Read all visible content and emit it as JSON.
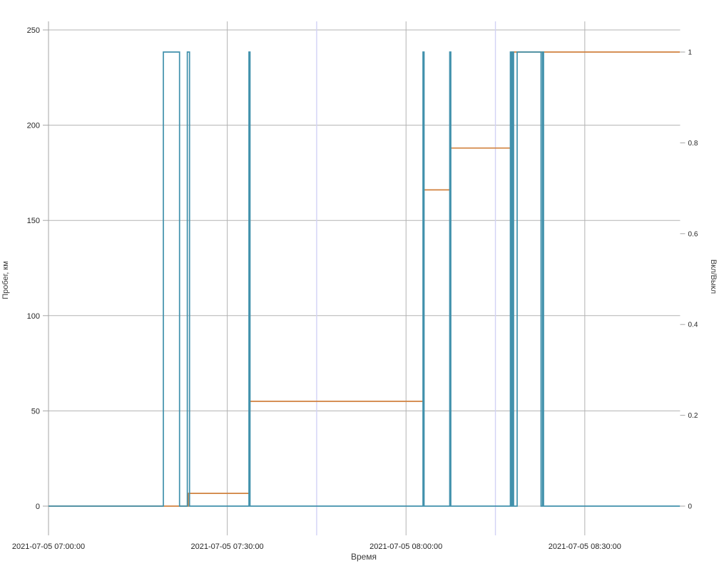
{
  "chart_data": {
    "type": "line",
    "title": "",
    "xlabel": "Время",
    "ylabel_left": "Пробег, км",
    "ylabel_right": "Вкл/Выкл",
    "x_axis": {
      "unit": "minutes from 2021-07-05 07:00:00",
      "range": [
        0,
        106
      ],
      "major_ticks": [
        {
          "t": 0,
          "label": "2021-07-05 07:00:00"
        },
        {
          "t": 30,
          "label": "2021-07-05 07:30:00"
        },
        {
          "t": 60,
          "label": "2021-07-05 08:00:00"
        },
        {
          "t": 90,
          "label": "2021-07-05 08:30:00"
        }
      ],
      "minor_ticks": [
        45,
        75
      ]
    },
    "y_left_axis": {
      "range": [
        0,
        254.5
      ],
      "ticks": [
        0,
        50,
        100,
        150,
        200,
        250
      ],
      "tick_labels": [
        "0",
        "50",
        "100",
        "150",
        "200",
        "250"
      ]
    },
    "y_right_axis": {
      "range": [
        0,
        1.068
      ],
      "ticks": [
        0,
        0.2,
        0.4,
        0.6,
        0.8,
        1
      ],
      "tick_labels": [
        "0",
        "0.2",
        "0.4",
        "0.6",
        "0.8",
        "1"
      ]
    },
    "grid": {
      "horizontal": [
        50,
        100,
        150,
        200,
        250
      ],
      "vertical_major": [
        30,
        60,
        90
      ],
      "baseline": 0
    },
    "legend": "none",
    "series": [
      {
        "name": "Пробег, км",
        "axis": "left",
        "style": "step",
        "color": "#d0813e",
        "points": [
          {
            "t": 0,
            "value": 0
          },
          {
            "t": 23.46,
            "value": 6.7
          },
          {
            "t": 33.7,
            "value": 55
          },
          {
            "t": 62.9,
            "value": 166
          },
          {
            "t": 67.39,
            "value": 188
          },
          {
            "t": 77.75,
            "value": 238.4
          }
        ],
        "end_t": 105.97
      },
      {
        "name": "Вкл/Выкл",
        "axis": "right",
        "style": "pulse",
        "color": "#4191ac",
        "low": 0,
        "high": 1,
        "pulses": [
          {
            "on": 19.27,
            "off": 21.99
          },
          {
            "on": 23.3,
            "off": 23.66
          },
          {
            "on": 33.64,
            "off": 33.82
          },
          {
            "on": 62.84,
            "off": 63.02
          },
          {
            "on": 67.33,
            "off": 67.51
          },
          {
            "on": 77.51,
            "off": 77.69
          },
          {
            "on": 77.87,
            "off": 78.05
          },
          {
            "on": 78.65,
            "off": 82.66
          },
          {
            "on": 82.9,
            "off": 83.08
          }
        ],
        "end_t": 105.97
      }
    ],
    "colors": {
      "grid_major": "#b3b3b3",
      "grid_minor": "#d2d2f5",
      "axis_line": "#a6a6a6",
      "tick_text": "#262626",
      "axis_title_text": "#3b3b3b",
      "background": "#ffffff"
    }
  }
}
